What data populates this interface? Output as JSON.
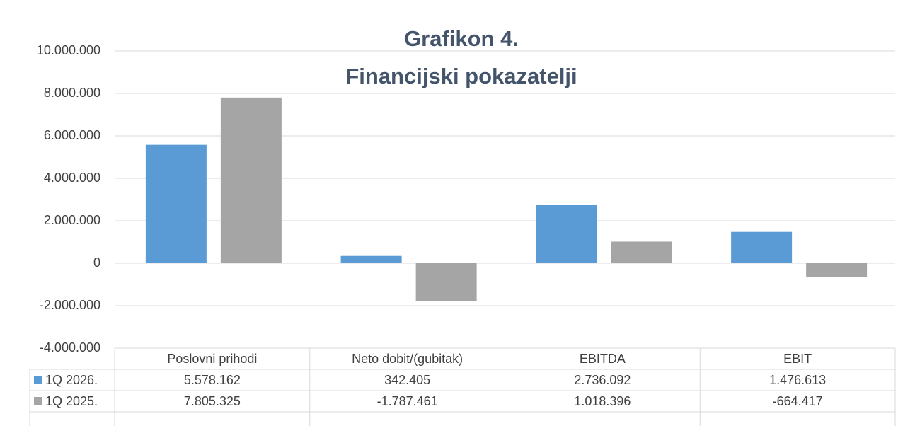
{
  "chart_data": {
    "type": "bar",
    "title": [
      "Grafikon 4.",
      "Financijski pokazatelji"
    ],
    "categories": [
      "Poslovni prihodi",
      "Neto dobit/(gubitak)",
      "EBITDA",
      "EBIT"
    ],
    "series": [
      {
        "name": "1Q 2026.",
        "color": "#5b9bd5",
        "values": [
          5578162,
          342405,
          2736092,
          1476613
        ],
        "value_labels": [
          "5.578.162",
          "342.405",
          "2.736.092",
          "1.476.613"
        ]
      },
      {
        "name": "1Q 2025.",
        "color": "#a5a5a5",
        "values": [
          7805325,
          -1787461,
          1018396,
          -664417
        ],
        "value_labels": [
          "7.805.325",
          "-1.787.461",
          "1.018.396",
          "-664.417"
        ]
      }
    ],
    "ylim": [
      -4000000,
      10000000
    ],
    "yticks": [
      {
        "value": -4000000,
        "label": "-4.000.000"
      },
      {
        "value": -2000000,
        "label": "-2.000.000"
      },
      0,
      {
        "value": 2000000,
        "label": "2.000.000"
      },
      {
        "value": 4000000,
        "label": "4.000.000"
      },
      {
        "value": 6000000,
        "label": "6.000.000"
      },
      {
        "value": 8000000,
        "label": "8.000.000"
      },
      {
        "value": 10000000,
        "label": "10.000.000"
      }
    ],
    "grid": true,
    "data_table": true
  }
}
